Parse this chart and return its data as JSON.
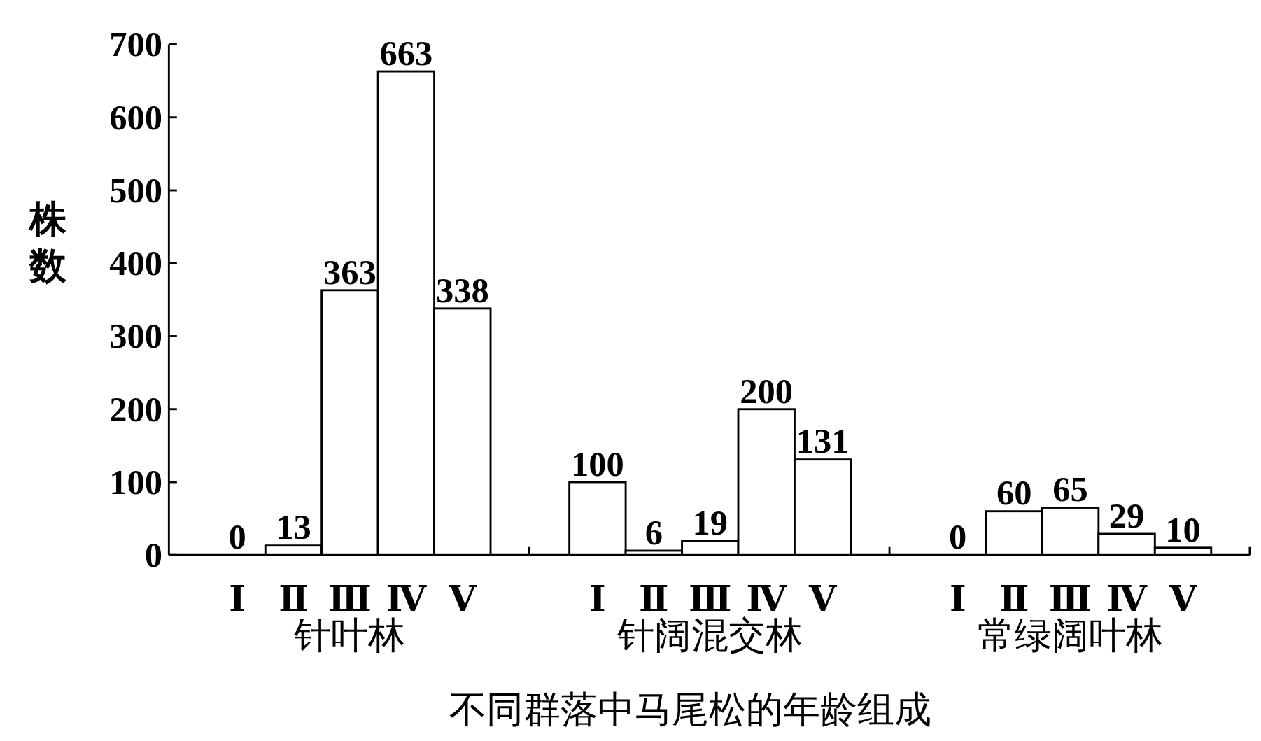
{
  "chart_data": [
    {
      "type": "bar",
      "categories": [
        "Ⅰ",
        "Ⅱ",
        "Ⅲ",
        "Ⅳ",
        "Ⅴ"
      ],
      "values": [
        0,
        13,
        363,
        663,
        338
      ],
      "color": "#ffffff",
      "xlabel": "针叶林",
      "ylabel": "株数",
      "ylim": [
        0,
        700
      ],
      "yticks": [
        0,
        100,
        200,
        300,
        400,
        500,
        600,
        700
      ],
      "data_labels": true
    },
    {
      "type": "bar",
      "categories": [
        "Ⅰ",
        "Ⅱ",
        "Ⅲ",
        "Ⅳ",
        "Ⅴ"
      ],
      "values": [
        100,
        6,
        19,
        200,
        131
      ],
      "color": "#ffffff",
      "xlabel": "针阔混交林",
      "title": "不同群落中马尾松的年龄组成",
      "ylim": [
        0,
        700
      ],
      "tick_labels": "x",
      "data_labels": true
    },
    {
      "type": "bar",
      "categories": [
        "Ⅰ",
        "Ⅱ",
        "Ⅲ",
        "Ⅳ",
        "Ⅴ"
      ],
      "values": [
        0,
        60,
        65,
        29,
        10
      ],
      "color": "#ffffff",
      "xlabel": "常绿阔叶林",
      "ylim": [
        0,
        700
      ],
      "tick_labels": "x",
      "data_labels": true
    }
  ]
}
